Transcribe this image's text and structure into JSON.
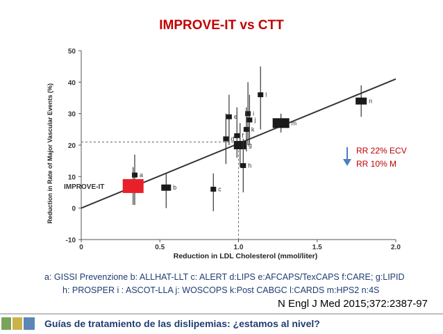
{
  "slide": {
    "title": "IMPROVE-IT vs CTT",
    "rr_lines": [
      "RR 22% ECV",
      "RR 10% M"
    ],
    "legend_line1": "a: GISSI Prevenzione b: ALLHAT-LLT c: ALERT d:LIPS  e:AFCAPS/TexCAPS  f:CARE; g:LIPID",
    "legend_line2": "h: PROSPER i : ASCOT-LLA  j: WOSCOPS  k:Post CABGC  l:CARDS m:HPS2  n:4S",
    "citation": "N Engl J Med 2015;372:2387-97",
    "footer": "Guías de tratamiento de las dislipemias: ¿estamos al nivel?",
    "colors": {
      "title": "#c00000",
      "text_blue": "#1f3c73",
      "improve_it": "#e8202a",
      "trial_box": "#1a1a1a",
      "arrow": "#4a7fc1"
    }
  },
  "chart_data": {
    "type": "scatter",
    "xlabel": "Reduction in LDL Cholesterol (mmol/liter)",
    "ylabel": "Reduction in Rate of Major Vascular Events (%)",
    "xlim": [
      0,
      2.0
    ],
    "ylim": [
      -10,
      50
    ],
    "x_ticks": [
      "0",
      "0.5",
      "1.0",
      "1.5",
      "2.0"
    ],
    "y_ticks": [
      "-10",
      "0",
      "10",
      "20",
      "30",
      "40",
      "50"
    ],
    "regression_line": [
      [
        0,
        0
      ],
      [
        2.0,
        41
      ]
    ],
    "reference": {
      "x": 1.0,
      "y": 21
    },
    "points": [
      {
        "label": "a",
        "x": 0.34,
        "y": 10.5,
        "ci": [
          1,
          17
        ]
      },
      {
        "label": "b",
        "x": 0.54,
        "y": 6.5,
        "ci": [
          0,
          11
        ]
      },
      {
        "label": "c",
        "x": 0.84,
        "y": 6,
        "ci": [
          -1,
          11
        ]
      },
      {
        "label": "d",
        "x": 0.92,
        "y": 22,
        "ci": [
          14,
          30
        ]
      },
      {
        "label": "e",
        "x": 0.94,
        "y": 29,
        "ci": [
          20,
          36
        ]
      },
      {
        "label": "f",
        "x": 0.99,
        "y": 23,
        "ci": [
          16,
          32
        ]
      },
      {
        "label": "g",
        "x": 1.01,
        "y": 20,
        "ci": [
          13,
          27
        ]
      },
      {
        "label": "h",
        "x": 1.03,
        "y": 13.5,
        "ci": [
          5,
          22
        ]
      },
      {
        "label": "i",
        "x": 1.06,
        "y": 30,
        "ci": [
          20,
          40
        ]
      },
      {
        "label": "j",
        "x": 1.07,
        "y": 28,
        "ci": [
          20,
          36
        ]
      },
      {
        "label": "k",
        "x": 1.05,
        "y": 25,
        "ci": [
          18,
          32
        ]
      },
      {
        "label": "l",
        "x": 1.14,
        "y": 36,
        "ci": [
          25,
          45
        ]
      },
      {
        "label": "m",
        "x": 1.27,
        "y": 27,
        "ci": [
          24,
          30
        ]
      },
      {
        "label": "n",
        "x": 1.78,
        "y": 34,
        "ci": [
          29,
          39
        ]
      }
    ],
    "improve_it": {
      "label": "IMPROVE-IT",
      "x": 0.33,
      "y": 7,
      "ci": [
        1,
        13
      ]
    }
  }
}
